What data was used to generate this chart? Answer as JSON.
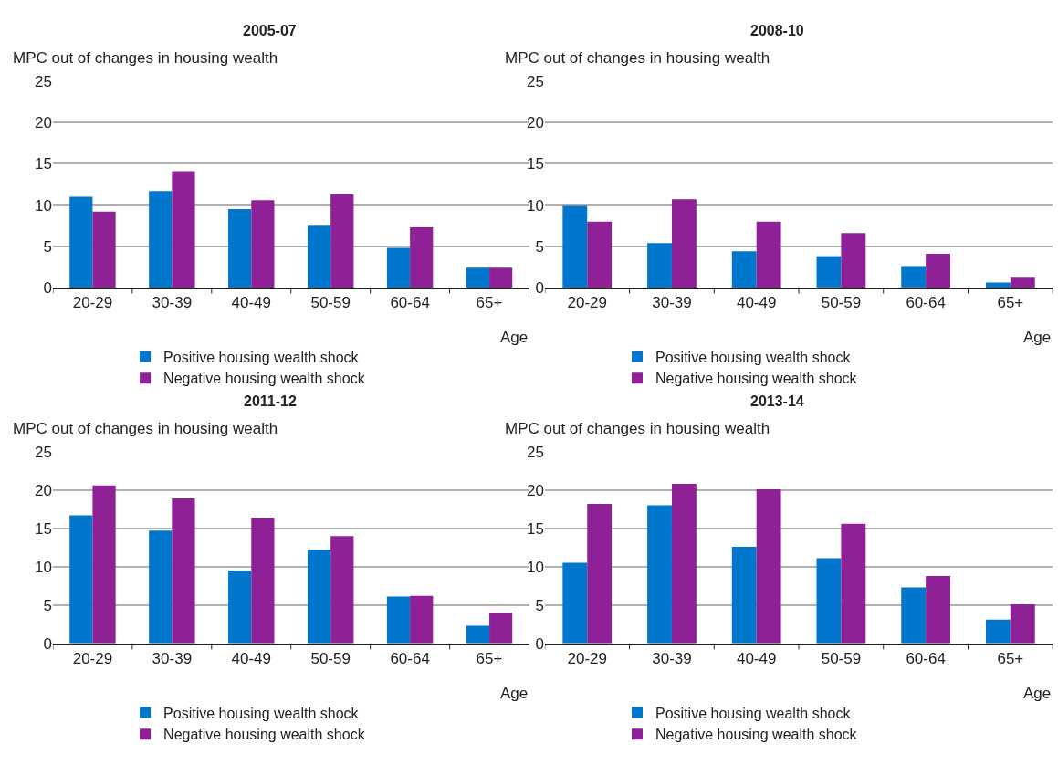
{
  "chart_data": [
    {
      "type": "bar",
      "title": "2005-07",
      "ylabel": "MPC out of changes in housing wealth",
      "xlabel": "Age",
      "categories": [
        "20-29",
        "30-39",
        "40-49",
        "50-59",
        "60-64",
        "65+"
      ],
      "series": [
        {
          "name": "Positive housing wealth shock",
          "color": "#0077cc",
          "values": [
            11.0,
            11.7,
            9.5,
            7.5,
            4.8,
            2.4
          ]
        },
        {
          "name": "Negative housing wealth shock",
          "color": "#8e2196",
          "values": [
            9.2,
            14.1,
            10.6,
            11.3,
            7.3,
            2.4
          ]
        }
      ],
      "ylim": [
        0,
        25
      ],
      "yticks": [
        0,
        5,
        10,
        15,
        20,
        25
      ],
      "grid": "y",
      "legend": "bottom"
    },
    {
      "type": "bar",
      "title": "2008-10",
      "ylabel": "MPC out of changes in housing wealth",
      "xlabel": "Age",
      "categories": [
        "20-29",
        "30-39",
        "40-49",
        "50-59",
        "60-64",
        "65+"
      ],
      "series": [
        {
          "name": "Positive housing wealth shock",
          "color": "#0077cc",
          "values": [
            9.9,
            5.4,
            4.4,
            3.8,
            2.6,
            0.6
          ]
        },
        {
          "name": "Negative housing wealth shock",
          "color": "#8e2196",
          "values": [
            8.0,
            10.7,
            8.0,
            6.6,
            4.1,
            1.3
          ]
        }
      ],
      "ylim": [
        0,
        25
      ],
      "yticks": [
        0,
        5,
        10,
        15,
        20,
        25
      ],
      "grid": "y",
      "legend": "bottom"
    },
    {
      "type": "bar",
      "title": "2011-12",
      "ylabel": "MPC out of changes in housing wealth",
      "xlabel": "Age",
      "categories": [
        "20-29",
        "30-39",
        "40-49",
        "50-59",
        "60-64",
        "65+"
      ],
      "series": [
        {
          "name": "Positive housing wealth shock",
          "color": "#0077cc",
          "values": [
            16.7,
            14.7,
            9.5,
            12.2,
            6.1,
            2.3
          ]
        },
        {
          "name": "Negative housing wealth shock",
          "color": "#8e2196",
          "values": [
            20.6,
            18.9,
            16.4,
            14.0,
            6.2,
            4.0
          ]
        }
      ],
      "ylim": [
        0,
        25
      ],
      "yticks": [
        0,
        5,
        10,
        15,
        20,
        25
      ],
      "grid": "y",
      "legend": "bottom"
    },
    {
      "type": "bar",
      "title": "2013-14",
      "ylabel": "MPC out of changes in housing wealth",
      "xlabel": "Age",
      "categories": [
        "20-29",
        "30-39",
        "40-49",
        "50-59",
        "60-64",
        "65+"
      ],
      "series": [
        {
          "name": "Positive housing wealth shock",
          "color": "#0077cc",
          "values": [
            10.5,
            18.0,
            12.6,
            11.1,
            7.3,
            3.1
          ]
        },
        {
          "name": "Negative housing wealth shock",
          "color": "#8e2196",
          "values": [
            18.2,
            20.8,
            20.1,
            15.6,
            8.8,
            5.1
          ]
        }
      ],
      "ylim": [
        0,
        25
      ],
      "yticks": [
        0,
        5,
        10,
        15,
        20,
        25
      ],
      "grid": "y",
      "legend": "bottom"
    }
  ]
}
